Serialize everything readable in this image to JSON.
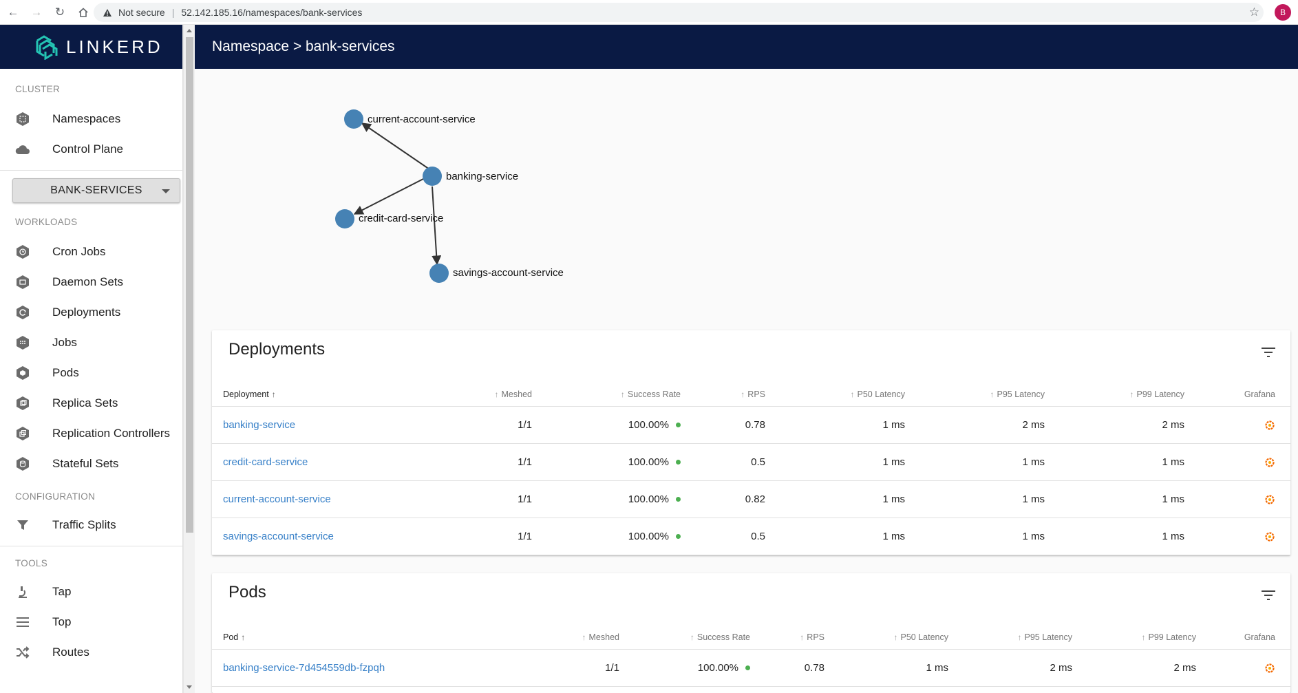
{
  "browser": {
    "security_label": "Not secure",
    "url": "52.142.185.16/namespaces/bank-services",
    "profile_initial": "B"
  },
  "brand": {
    "name": "LINKERD",
    "color": "#0a1a44",
    "accent": "#24c4b4"
  },
  "sidebar": {
    "cluster_label": "CLUSTER",
    "cluster_items": [
      {
        "label": "Namespaces",
        "icon": "namespace-icon"
      },
      {
        "label": "Control Plane",
        "icon": "cloud-icon"
      }
    ],
    "namespace_select": "BANK-SERVICES",
    "workloads_label": "WORKLOADS",
    "workload_items": [
      {
        "label": "Cron Jobs",
        "icon": "cronjob-icon"
      },
      {
        "label": "Daemon Sets",
        "icon": "daemonset-icon"
      },
      {
        "label": "Deployments",
        "icon": "deployment-icon"
      },
      {
        "label": "Jobs",
        "icon": "job-icon"
      },
      {
        "label": "Pods",
        "icon": "pod-icon"
      },
      {
        "label": "Replica Sets",
        "icon": "replicaset-icon"
      },
      {
        "label": "Replication Controllers",
        "icon": "replicationcontroller-icon"
      },
      {
        "label": "Stateful Sets",
        "icon": "statefulset-icon"
      }
    ],
    "configuration_label": "CONFIGURATION",
    "configuration_items": [
      {
        "label": "Traffic Splits",
        "icon": "filter-funnel-icon"
      }
    ],
    "tools_label": "TOOLS",
    "tools_items": [
      {
        "label": "Tap",
        "icon": "microscope-icon"
      },
      {
        "label": "Top",
        "icon": "list-icon"
      },
      {
        "label": "Routes",
        "icon": "shuffle-icon"
      }
    ]
  },
  "header": {
    "title": "Namespace > bank-services"
  },
  "graph": {
    "nodes": [
      "current-account-service",
      "banking-service",
      "credit-card-service",
      "savings-account-service"
    ],
    "edges": [
      [
        "banking-service",
        "current-account-service"
      ],
      [
        "banking-service",
        "credit-card-service"
      ],
      [
        "banking-service",
        "savings-account-service"
      ]
    ],
    "node_color": "#4682b4"
  },
  "deployments": {
    "title": "Deployments",
    "columns": [
      "Deployment",
      "Meshed",
      "Success Rate",
      "RPS",
      "P50 Latency",
      "P95 Latency",
      "P99 Latency",
      "Grafana"
    ],
    "rows": [
      {
        "name": "banking-service",
        "meshed": "1/1",
        "success": "100.00%",
        "rps": "0.78",
        "p50": "1 ms",
        "p95": "2 ms",
        "p99": "2 ms"
      },
      {
        "name": "credit-card-service",
        "meshed": "1/1",
        "success": "100.00%",
        "rps": "0.5",
        "p50": "1 ms",
        "p95": "1 ms",
        "p99": "1 ms"
      },
      {
        "name": "current-account-service",
        "meshed": "1/1",
        "success": "100.00%",
        "rps": "0.82",
        "p50": "1 ms",
        "p95": "1 ms",
        "p99": "1 ms"
      },
      {
        "name": "savings-account-service",
        "meshed": "1/1",
        "success": "100.00%",
        "rps": "0.5",
        "p50": "1 ms",
        "p95": "1 ms",
        "p99": "1 ms"
      }
    ]
  },
  "pods": {
    "title": "Pods",
    "columns": [
      "Pod",
      "Meshed",
      "Success Rate",
      "RPS",
      "P50 Latency",
      "P95 Latency",
      "P99 Latency",
      "Grafana"
    ],
    "rows": [
      {
        "name": "banking-service-7d454559db-fzpqh",
        "meshed": "1/1",
        "success": "100.00%",
        "rps": "0.78",
        "p50": "1 ms",
        "p95": "2 ms",
        "p99": "2 ms"
      }
    ]
  },
  "status_colors": {
    "success": "#4caf50",
    "link": "#3780c8"
  }
}
